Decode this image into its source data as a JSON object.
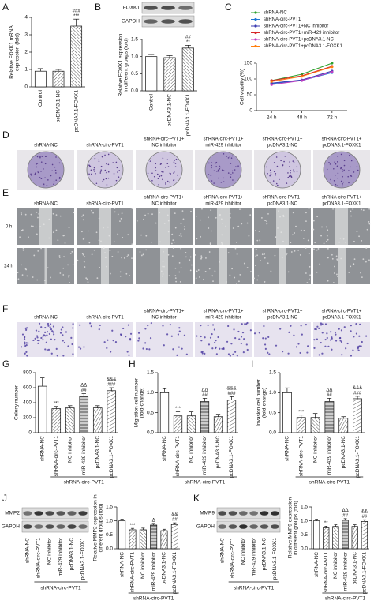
{
  "panel_letters": [
    "A",
    "B",
    "C",
    "D",
    "E",
    "F",
    "G",
    "H",
    "I",
    "J",
    "K"
  ],
  "chart_data": [
    {
      "type": "bar",
      "ylabel": [
        "Relative FOXK1 mRNA",
        "expression (fold)"
      ],
      "categories": [
        "Control",
        "pcDNA3.1-NC",
        "pcDNA3.1-FOXK1"
      ],
      "values": [
        0.9,
        0.9,
        3.5
      ],
      "errors": [
        0.15,
        0.1,
        0.4
      ],
      "annotations": [
        [],
        [],
        [
          "###",
          "***"
        ]
      ],
      "ylim": [
        0,
        4
      ],
      "yticks": [
        0,
        1,
        2,
        3,
        4
      ]
    },
    {
      "type": "bar",
      "ylabel": [
        "Relative FOXK1 expression",
        "in different groups (fold)"
      ],
      "categories": [
        "Control",
        "pcDNA3.1-NC",
        "pcDNA3.1-FOXK1"
      ],
      "values": [
        1.0,
        0.97,
        1.25
      ],
      "errors": [
        0.06,
        0.06,
        0.08
      ],
      "annotations": [
        [],
        [],
        [
          "##",
          "**"
        ]
      ],
      "ylim": [
        0,
        1.5
      ],
      "yticks": [
        {
          "value": 0,
          "label": "0.0"
        },
        0.5,
        {
          "value": 1,
          "label": "1.0"
        },
        1.5
      ]
    },
    {
      "type": "line",
      "ylabel": [
        "Cell viability (%)"
      ],
      "categories": [
        "24 h",
        "48 h",
        "72 h"
      ],
      "series": [
        {
          "name": "shRNA-NC",
          "color": "#2ca02c",
          "values": [
            95,
            115,
            150
          ]
        },
        {
          "name": "shRNA-circ-PVT1",
          "color": "#1f77d4",
          "values": [
            85,
            95,
            120
          ]
        },
        {
          "name": "shRNA-circ-PVT1+NC inhibitor",
          "color": "#3b3bb0",
          "values": [
            87,
            97,
            125
          ]
        },
        {
          "name": "shRNA-circ-PVT1+miR-429 inhibitor",
          "color": "#d62728",
          "values": [
            95,
            110,
            140
          ]
        },
        {
          "name": "shRNA-circ-PVT1+pcDNA3.1-NC",
          "color": "#c03cc0",
          "values": [
            82,
            95,
            122
          ]
        },
        {
          "name": "shRNA-circ-PVT1+pcDNA3.1-FOXK1",
          "color": "#ff7f0e",
          "values": [
            92,
            108,
            138
          ]
        }
      ],
      "ylim": [
        0,
        150
      ],
      "yticks": [
        0,
        50,
        100,
        150
      ]
    },
    {
      "type": "bar",
      "ylabel": [
        "Colony number"
      ],
      "categories": [
        "shRNA-NC",
        "shRNA-circ-PVT1",
        "NC inhibitor",
        "miR-429 inhibitor",
        "pcDNA3.1-NC",
        "pcDNA3.1-FOXK1"
      ],
      "values": [
        620,
        320,
        330,
        480,
        330,
        560
      ],
      "errors": [
        110,
        30,
        30,
        40,
        30,
        40
      ],
      "annotations": [
        [],
        [
          "***"
        ],
        [],
        [
          "ΔΔ",
          "##"
        ],
        [],
        [
          "&&&",
          "###"
        ]
      ],
      "group_label": "shRNA-circ-PVT1",
      "ylim": [
        0,
        800
      ],
      "yticks": [
        0,
        200,
        400,
        600,
        800
      ]
    },
    {
      "type": "bar",
      "ylabel": [
        "Migration cell number",
        "(fold-change)"
      ],
      "categories": [
        "shRNA-NC",
        "shRNA-circ-PVT1",
        "NC inhibitor",
        "miR-429 inhibitor",
        "pcDNA3.1-NC",
        "pcDNA3.1-FOXK1"
      ],
      "values": [
        1.0,
        0.42,
        0.42,
        0.78,
        0.4,
        0.82
      ],
      "errors": [
        0.1,
        0.1,
        0.1,
        0.08,
        0.06,
        0.08
      ],
      "annotations": [
        [],
        [
          "***"
        ],
        [],
        [
          "ΔΔ",
          "##"
        ],
        [],
        [
          "&&&",
          "###"
        ]
      ],
      "group_label": "shRNA-circ-PVT1",
      "ylim": [
        0,
        1.5
      ],
      "yticks": [
        {
          "value": 0,
          "label": "0.0"
        },
        0.5,
        {
          "value": 1,
          "label": "1.0"
        },
        1.5
      ]
    },
    {
      "type": "bar",
      "ylabel": [
        "Invasion cell number",
        "(fold-change)"
      ],
      "categories": [
        "shRNA-NC",
        "shRNA-circ-PVT1",
        "NC inhibitor",
        "miR-429 inhibitor",
        "pcDNA3.1-NC",
        "pcDNA3.1-FOXK1"
      ],
      "values": [
        1.0,
        0.38,
        0.38,
        0.78,
        0.36,
        0.85
      ],
      "errors": [
        0.12,
        0.06,
        0.1,
        0.08,
        0.04,
        0.06
      ],
      "annotations": [
        [],
        [
          "***"
        ],
        [],
        [
          "ΔΔ",
          "##"
        ],
        [],
        [
          "&&&",
          "###"
        ]
      ],
      "group_label": "shRNA-circ-PVT1",
      "ylim": [
        0,
        1.5
      ],
      "yticks": [
        {
          "value": 0,
          "label": "0.0"
        },
        0.5,
        {
          "value": 1,
          "label": "1.0"
        },
        1.5
      ]
    },
    {
      "type": "bar",
      "ylabel": [
        "Relative MMP2 expression in",
        "different groups (fold)"
      ],
      "categories": [
        "shRNA-NC",
        "shRNA-circ-PVT1",
        "NC inhibitor",
        "miR-429 inhibitor",
        "pcDNA3.1-NC",
        "pcDNA3.1-FOXK1"
      ],
      "values": [
        1.0,
        0.68,
        0.68,
        0.85,
        0.65,
        0.87
      ],
      "errors": [
        0.06,
        0.05,
        0.06,
        0.06,
        0.05,
        0.06
      ],
      "annotations": [
        [],
        [
          "***"
        ],
        [],
        [
          "Δ"
        ],
        [],
        [
          "&&",
          "##"
        ]
      ],
      "group_label": "shRNA-circ-PVT1",
      "ylim": [
        0,
        1.5
      ],
      "yticks": [
        {
          "value": 0,
          "label": "0.0"
        },
        0.5,
        {
          "value": 1,
          "label": "1.0"
        },
        1.5
      ]
    },
    {
      "type": "bar",
      "ylabel": [
        "Relative MMP9 expression",
        "in different groups (fold)"
      ],
      "categories": [
        "shRNA-NC",
        "shRNA-circ-PVT1",
        "NC inhibitor",
        "miR-429 inhibitor",
        "pcDNA3.1-NC",
        "pcDNA3.1-FOXK1"
      ],
      "values": [
        1.0,
        0.75,
        0.8,
        1.02,
        0.8,
        0.98
      ],
      "errors": [
        0.06,
        0.06,
        0.06,
        0.06,
        0.06,
        0.06
      ],
      "annotations": [
        [],
        [
          "**"
        ],
        [],
        [
          "ΔΔ",
          "##"
        ],
        [],
        [
          "&&",
          "##"
        ]
      ],
      "group_label": "shRNA-circ-PVT1",
      "ylim": [
        0,
        1.5
      ],
      "yticks": [
        {
          "value": 0,
          "label": "0.0"
        },
        0.5,
        {
          "value": 1,
          "label": "1.0"
        },
        1.5
      ]
    }
  ],
  "image_panels": {
    "D": {
      "columns": [
        [
          "shRNA-NC"
        ],
        [
          "shRNA-circ-PVT1"
        ],
        [
          "shRNA-circ-PVT1+",
          "NC inhibitor"
        ],
        [
          "shRNA-circ-PVT1+",
          "miR-429 inhibitor"
        ],
        [
          "shRNA-circ-PVT1+",
          "pcDNA3.1-NC"
        ],
        [
          "shRNA-circ-PVT1+",
          "pcDNA3.1-FOXK1"
        ]
      ]
    },
    "E": {
      "columns": [
        [
          "shRNA-NC"
        ],
        [
          "shRNA-circ-PVT1"
        ],
        [
          "shRNA-circ-PVT1+",
          "NC inhibitor"
        ],
        [
          "shRNA-circ-PVT1+",
          "miR-429 inhibitor"
        ],
        [
          "shRNA-circ-PVT1+",
          "pcDNA3.1-NC"
        ],
        [
          "shRNA-circ-PVT1+",
          "pcDNA3.1-FOXK1"
        ]
      ],
      "rows": [
        "0 h",
        "24 h"
      ]
    },
    "F": {
      "columns": [
        [
          "shRNA-NC"
        ],
        [
          "shRNA-circ-PVT1"
        ],
        [
          "shRNA-circ-PVT1+",
          "NC inhibitor"
        ],
        [
          "shRNA-circ-PVT1+",
          "miR-429 inhibitor"
        ],
        [
          "shRNA-circ-PVT1+",
          "pcDNA3.1-NC"
        ],
        [
          "shRNA-circ-PVT1+",
          "pcDNA3.1-FOXK1"
        ]
      ]
    }
  },
  "blots": {
    "B": {
      "bands": [
        "FOXK1",
        "GAPDH"
      ]
    },
    "J": {
      "bands": [
        "MMP2",
        "GAPDH"
      ],
      "lanes": [
        "shRNA-NC",
        "shRNA-circ-PVT1",
        "NC inhibitor",
        "miR-429 inhibitor",
        "pcDNA3.1-NC",
        "pcDNA3.1-FOXK1"
      ],
      "group_label": "shRNA-circ-PVT1"
    },
    "K": {
      "bands": [
        "MMP9",
        "GAPDH"
      ],
      "lanes": [
        "shRNA-NC",
        "shRNA-circ-PVT1",
        "NC inhibitor",
        "miR-429 inhibitor",
        "pcDNA3.1-NC",
        "pcDNA3.1-FOXK1"
      ],
      "group_label": "shRNA-circ-PVT1"
    }
  }
}
